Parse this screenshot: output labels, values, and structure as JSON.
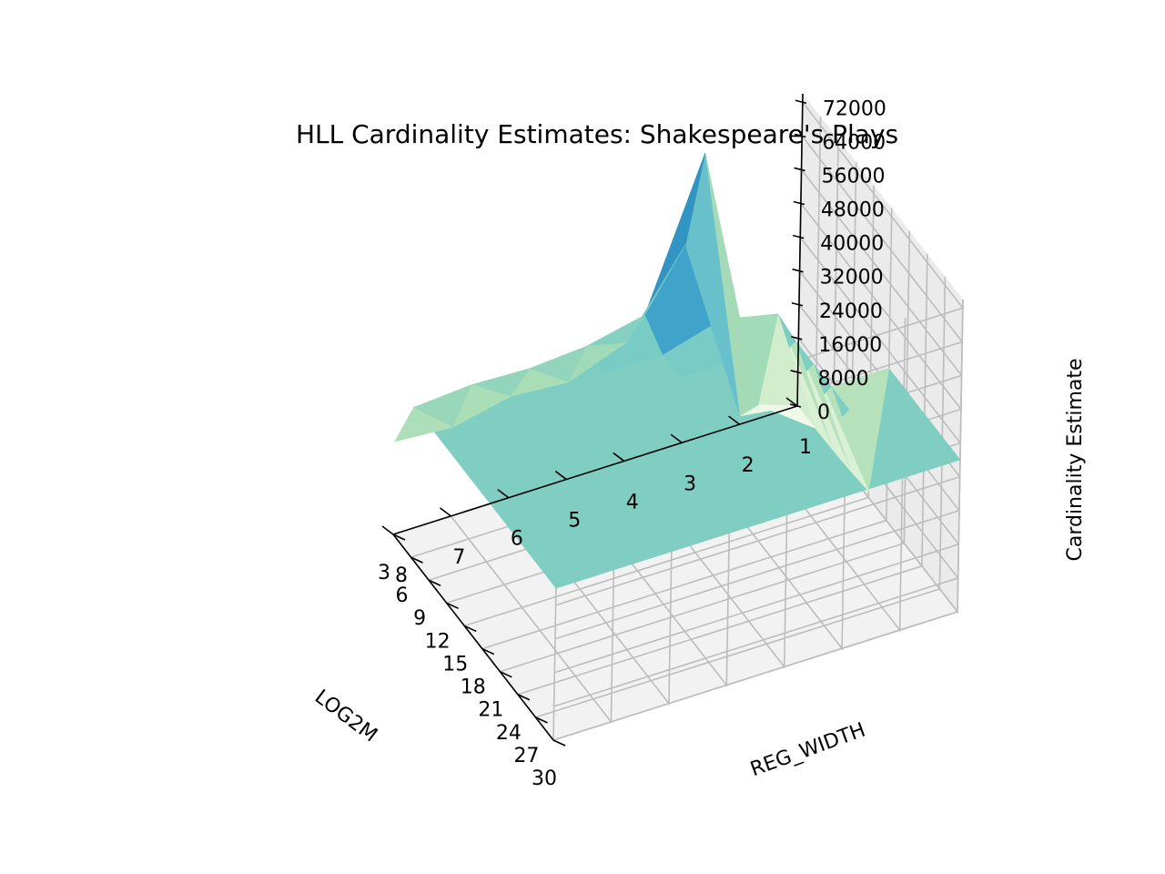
{
  "chart_data": {
    "type": "surface",
    "title": "HLL Cardinality Estimates: Shakespeare's Plays",
    "xlabel": "LOG2M",
    "ylabel": "REG_WIDTH",
    "zlabel": "Cardinality Estimate",
    "x_ticks": [
      30,
      27,
      24,
      21,
      18,
      15,
      12,
      9,
      6,
      3
    ],
    "y_ticks": [
      8,
      7,
      6,
      5,
      4,
      3,
      2,
      1
    ],
    "z_ticks": [
      0,
      8000,
      16000,
      24000,
      32000,
      40000,
      48000,
      56000,
      64000,
      72000
    ],
    "xlim": [
      3,
      30
    ],
    "ylim": [
      1,
      8
    ],
    "zlim": [
      0,
      74000
    ],
    "grid": true,
    "colormap": "GnBu",
    "log2m_rows": [
      30,
      27,
      24,
      21,
      18,
      15,
      12,
      9,
      6,
      3
    ],
    "reg_width_cols": [
      8,
      7,
      6,
      5,
      4,
      3,
      2,
      1
    ],
    "z": [
      [
        36000,
        36000,
        36000,
        36000,
        36000,
        36000,
        36000,
        36000
      ],
      [
        36000,
        36000,
        36000,
        36000,
        36000,
        36000,
        36000,
        36000
      ],
      [
        36000,
        36000,
        36000,
        36000,
        36000,
        36000,
        36000,
        36000
      ],
      [
        36000,
        36000,
        36000,
        36000,
        36000,
        36000,
        36000,
        36000
      ],
      [
        36000,
        36000,
        36000,
        36000,
        36000,
        36000,
        36000,
        36000
      ],
      [
        36000,
        36000,
        36000,
        36000,
        36000,
        36000,
        36000,
        1500
      ],
      [
        36000,
        36000,
        36000,
        36000,
        36000,
        36000,
        36000,
        800
      ],
      [
        36000,
        36000,
        36000,
        36000,
        36000,
        40000,
        37000,
        400
      ],
      [
        35500,
        36500,
        36000,
        37000,
        40000,
        74000,
        10000,
        200
      ],
      [
        22000,
        21000,
        24000,
        23000,
        28000,
        47000,
        2000,
        100
      ]
    ]
  }
}
